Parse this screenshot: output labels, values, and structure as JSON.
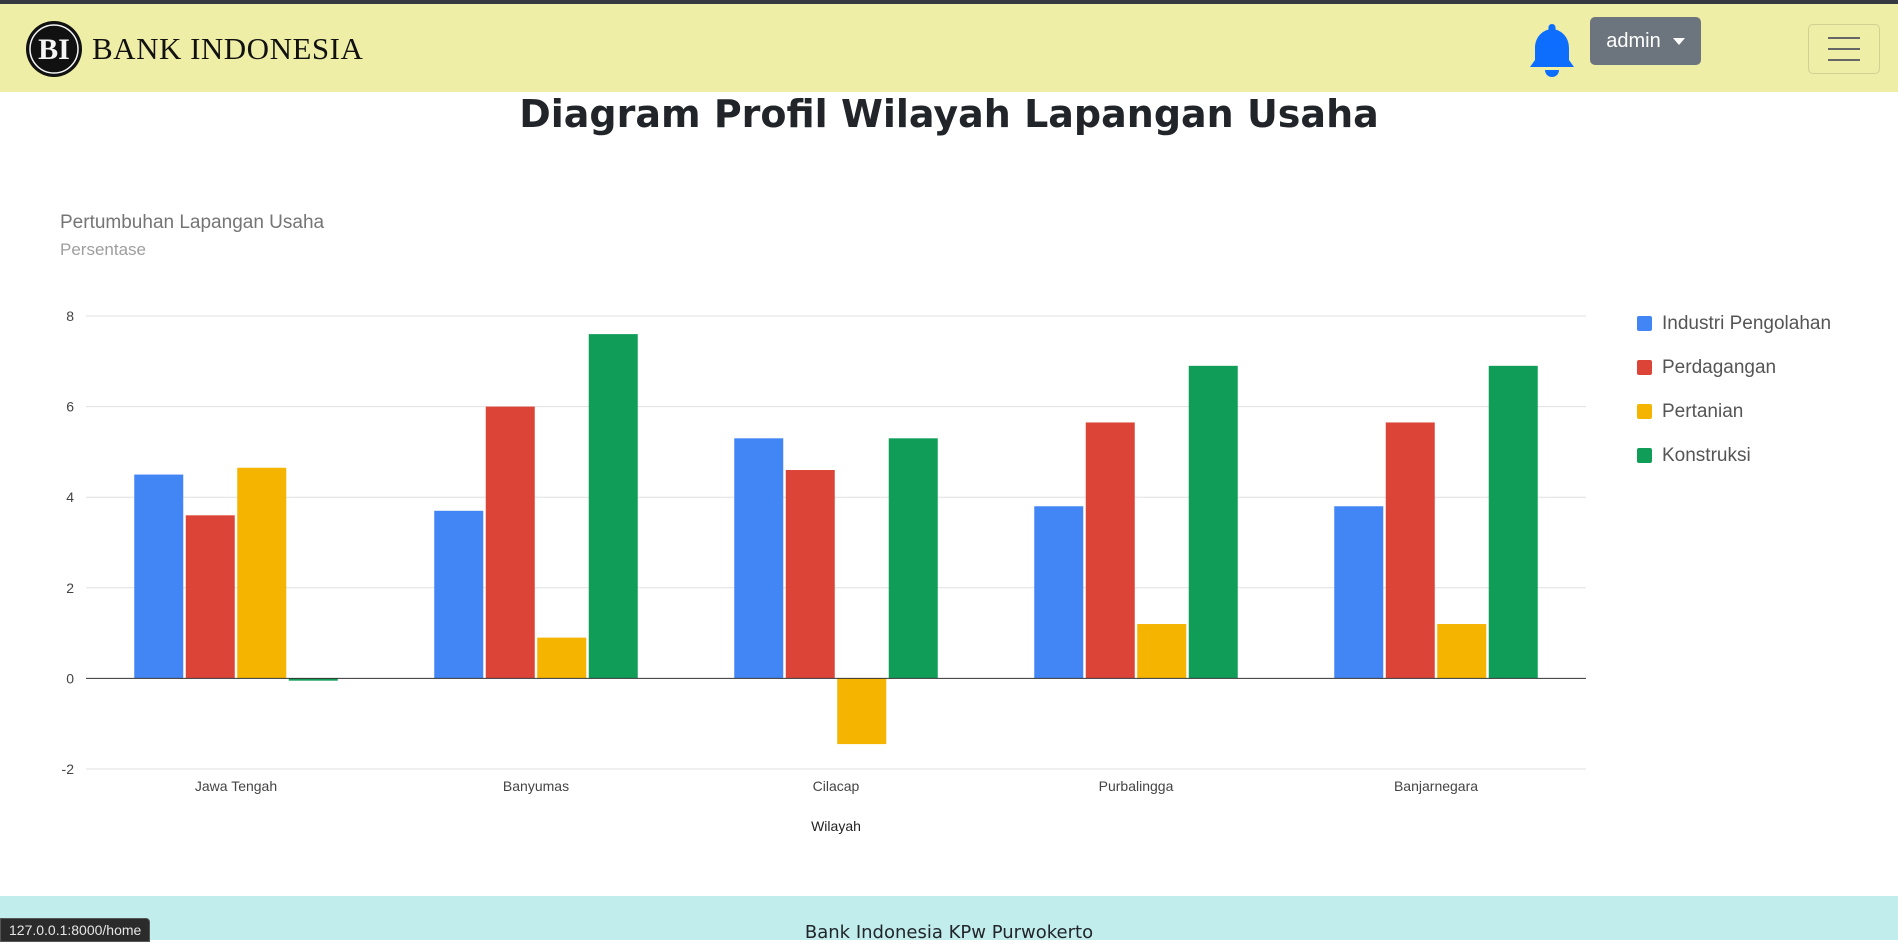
{
  "navbar": {
    "brand_name": "BANK INDONESIA",
    "logo_letters": "BI",
    "user_label": "admin"
  },
  "page": {
    "title": "Diagram Profil Wilayah Lapangan Usaha"
  },
  "chart_data": {
    "type": "bar",
    "title": "Pertumbuhan Lapangan Usaha",
    "subtitle": "Persentase",
    "xlabel": "Wilayah",
    "ylabel": "",
    "ylim": [
      -2,
      8
    ],
    "yticks": [
      -2,
      0,
      2,
      4,
      6,
      8
    ],
    "grid": true,
    "legend_position": "right",
    "categories": [
      "Jawa Tengah",
      "Banyumas",
      "Cilacap",
      "Purbalingga",
      "Banjarnegara"
    ],
    "series": [
      {
        "name": "Industri Pengolahan",
        "color": "#4285f4",
        "values": [
          4.5,
          3.7,
          5.3,
          3.8,
          3.8
        ]
      },
      {
        "name": "Perdagangan",
        "color": "#db4437",
        "values": [
          3.6,
          6.0,
          4.6,
          5.65,
          5.65
        ]
      },
      {
        "name": "Pertanian",
        "color": "#f4b400",
        "values": [
          4.65,
          0.9,
          -1.45,
          1.2,
          1.2
        ]
      },
      {
        "name": "Konstruksi",
        "color": "#0f9d58",
        "values": [
          -0.05,
          7.6,
          5.3,
          6.9,
          6.9
        ]
      }
    ]
  },
  "footer": {
    "text": "Bank Indonesia KPw Purwokerto"
  },
  "status_bar": {
    "url": "127.0.0.1:8000/home"
  },
  "icons": {
    "bell": "bell-icon",
    "menu": "hamburger-menu-icon",
    "caret": "caret-down-icon",
    "logo": "bank-indonesia-logo"
  }
}
